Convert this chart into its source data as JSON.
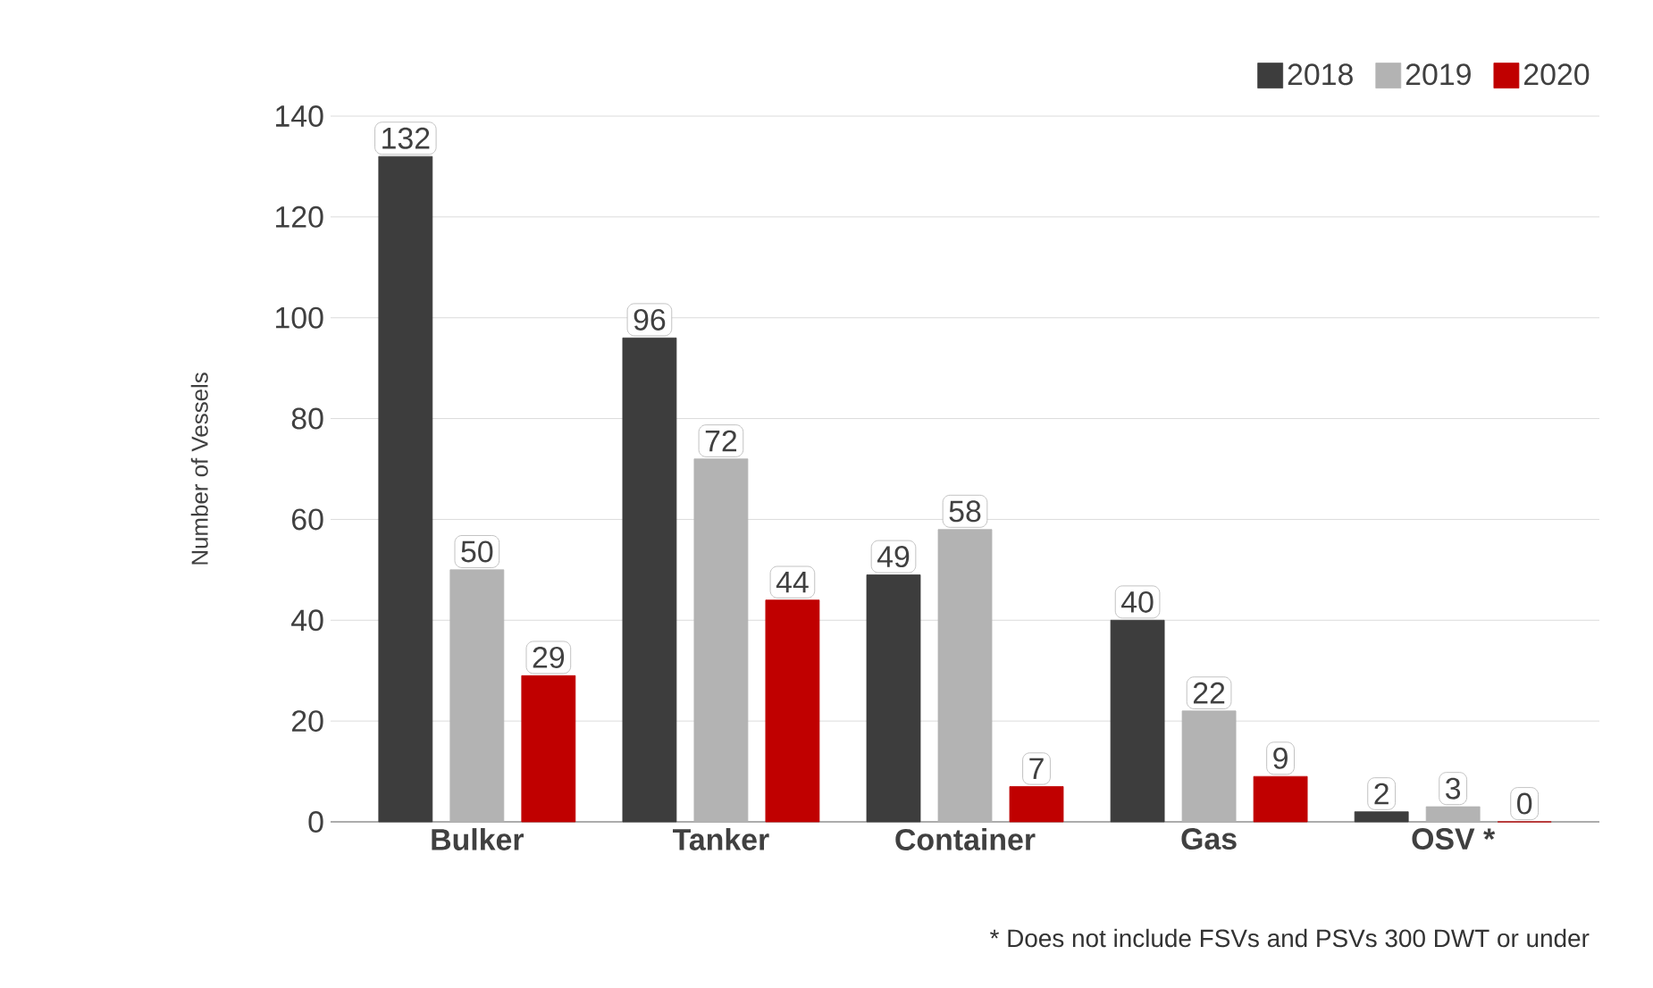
{
  "chart_data": {
    "type": "bar",
    "ylabel": "Number of Vessels",
    "categories": [
      "Bulker",
      "Tanker",
      "Container",
      "Gas",
      "OSV *"
    ],
    "series": [
      {
        "name": "2018",
        "color": "#3d3d3d",
        "values": [
          132,
          96,
          49,
          40,
          2
        ]
      },
      {
        "name": "2019",
        "color": "#b3b3b3",
        "values": [
          50,
          72,
          58,
          22,
          3
        ]
      },
      {
        "name": "2020",
        "color": "#c00000",
        "values": [
          29,
          44,
          7,
          9,
          0
        ]
      }
    ],
    "ylim": [
      0,
      140
    ],
    "yticks": [
      0,
      20,
      40,
      60,
      80,
      100,
      120,
      140
    ],
    "grid": "y",
    "legend": "top right",
    "data_labels": true,
    "annotations": [
      "* Does not include FSVs and PSVs 300 DWT or under"
    ]
  }
}
